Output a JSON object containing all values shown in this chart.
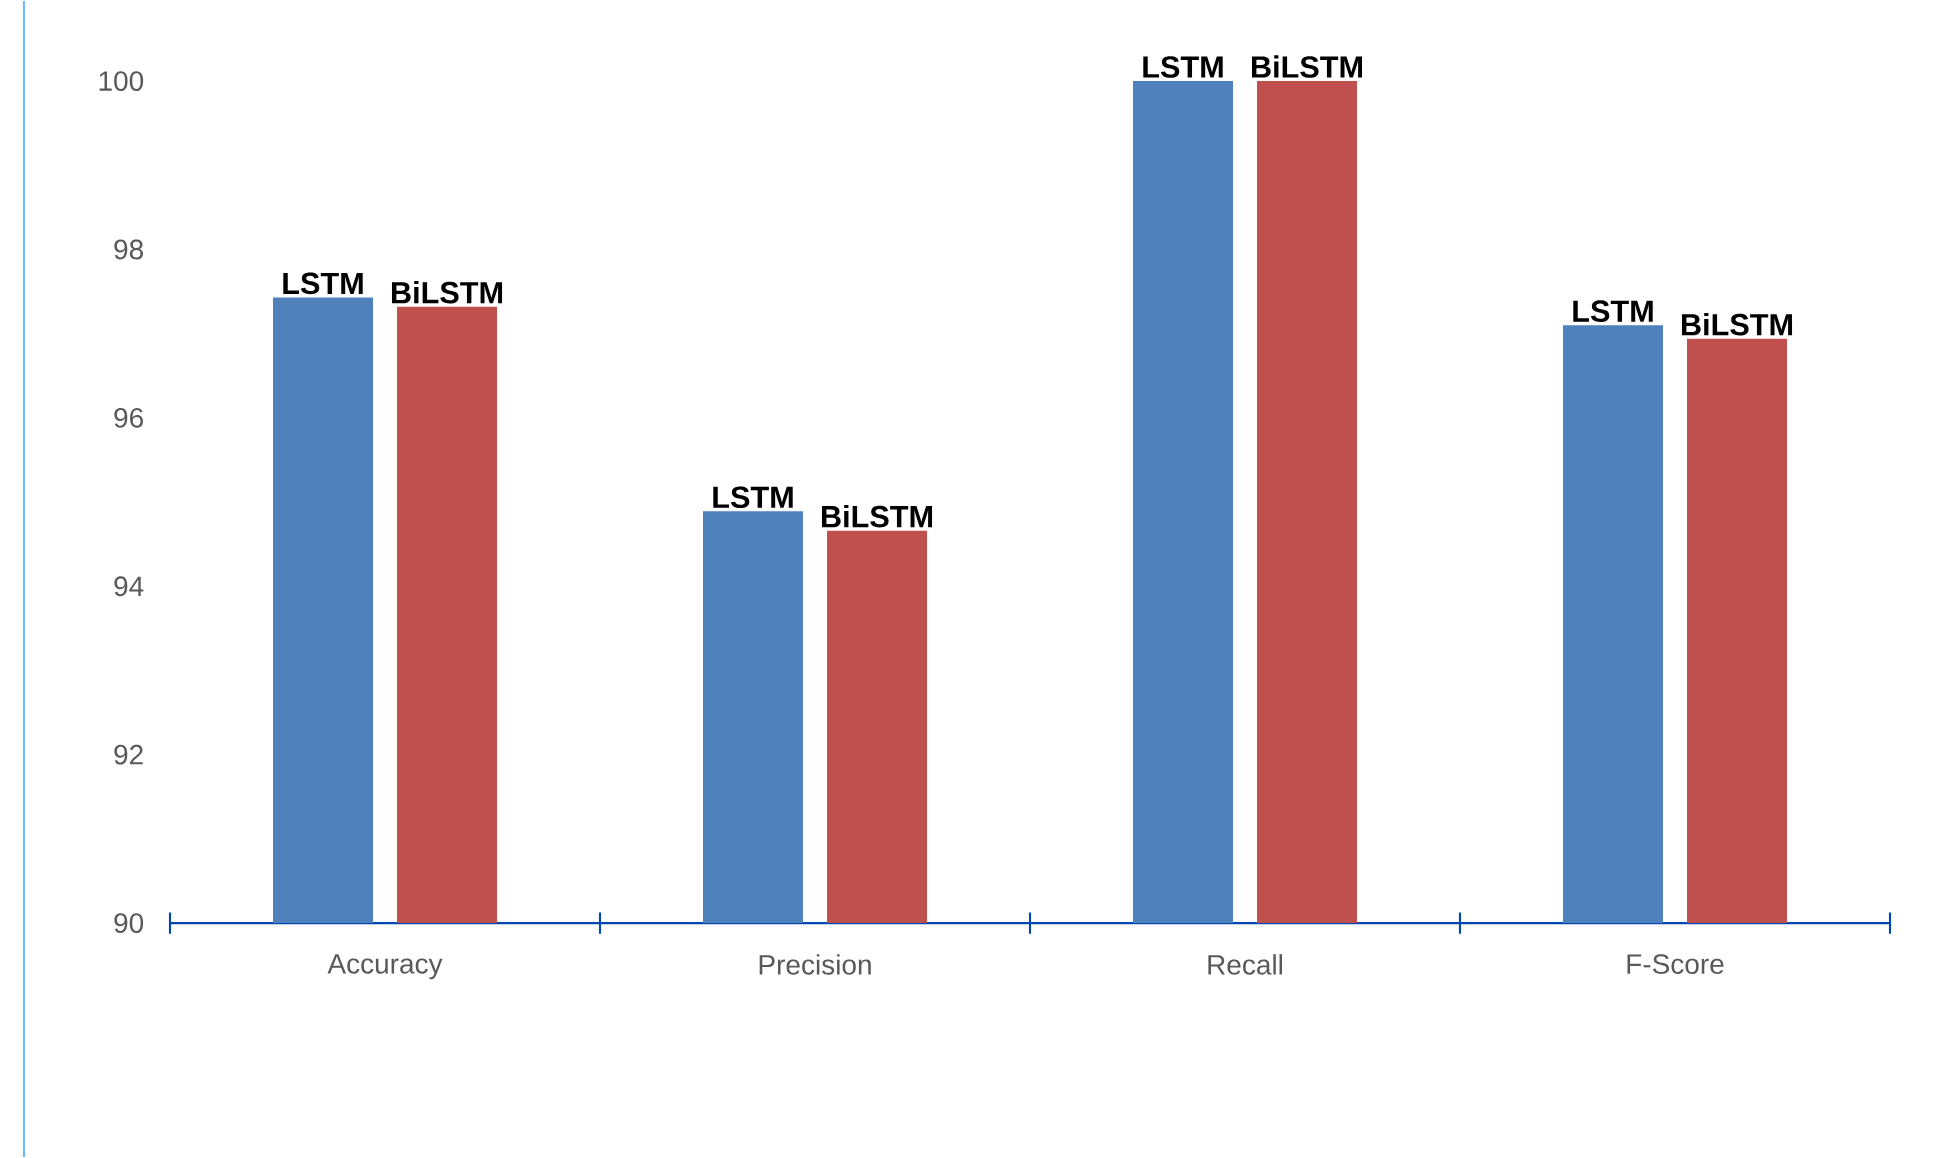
{
  "chart_data": {
    "type": "bar",
    "categories": [
      "Accuracy",
      "Precision",
      "Recall",
      "F-Score"
    ],
    "series": [
      {
        "name": "LSTM",
        "color": "#4f81bd",
        "values": [
          97.43,
          94.89,
          100,
          97.1
        ]
      },
      {
        "name": "BiLSTM",
        "color": "#c0504d",
        "values": [
          97.32,
          94.66,
          100,
          96.94
        ]
      }
    ],
    "ylim": [
      90,
      100
    ],
    "yticks": [
      90,
      92,
      94,
      96,
      98,
      100
    ]
  }
}
